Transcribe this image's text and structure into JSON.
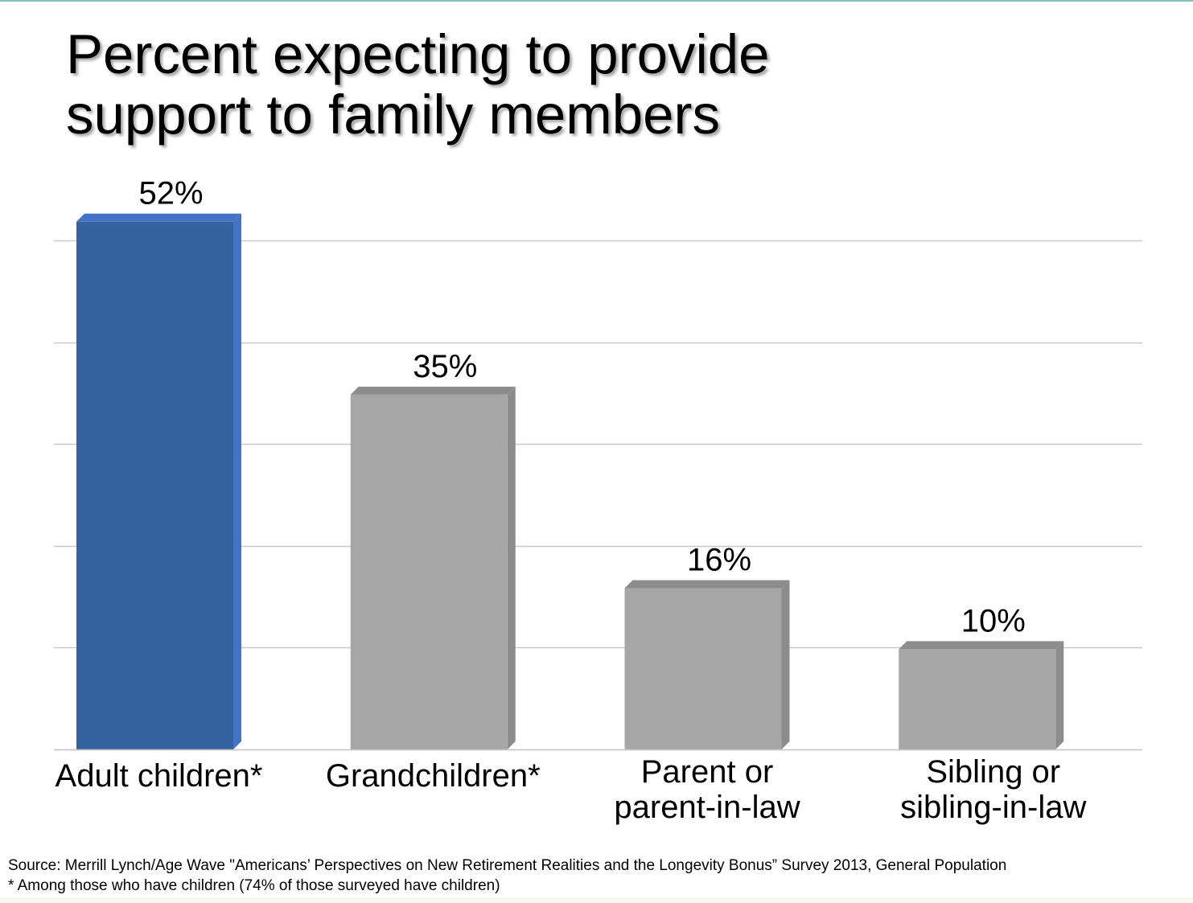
{
  "title_lines": [
    "Percent expecting to provide",
    "support to family members"
  ],
  "chart_data": {
    "type": "bar",
    "categories": [
      [
        "Adult children*"
      ],
      [
        "Grandchildren*"
      ],
      [
        "Parent or",
        "parent-in-law"
      ],
      [
        "Sibling or",
        "sibling-in-law"
      ]
    ],
    "values": [
      52,
      35,
      16,
      10
    ],
    "value_labels": [
      "52%",
      "35%",
      "16%",
      "10%"
    ],
    "highlight_index": 0,
    "colors": {
      "highlight": "#33649f",
      "highlight_side": "#4472c4",
      "default": "#a6a6a6",
      "default_side": "#8c8c8c",
      "gridline": "#c8c8c8"
    },
    "ylim": [
      0,
      50
    ],
    "grid": true,
    "xlabel": "",
    "ylabel": ""
  },
  "source": {
    "line1": "Source: Merrill Lynch/Age Wave \"Americans’ Perspectives on New Retirement Realities and the Longevity Bonus” Survey  2013, General Population",
    "line2": "* Among  those who have children (74% of those surveyed have children)"
  }
}
